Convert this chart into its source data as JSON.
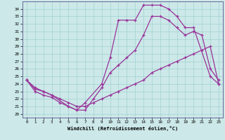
{
  "xlabel": "Windchill (Refroidissement éolien,°C)",
  "bg_color": "#cce8e8",
  "line_color": "#993399",
  "xlim": [
    -0.5,
    23.5
  ],
  "ylim": [
    19.5,
    35.0
  ],
  "xticks": [
    0,
    1,
    2,
    3,
    4,
    5,
    6,
    7,
    8,
    9,
    10,
    11,
    12,
    13,
    14,
    15,
    16,
    17,
    18,
    19,
    20,
    21,
    22,
    23
  ],
  "yticks": [
    20,
    21,
    22,
    23,
    24,
    25,
    26,
    27,
    28,
    29,
    30,
    31,
    32,
    33,
    34
  ],
  "line1_x": [
    0,
    1,
    2,
    3,
    5,
    6,
    7,
    9,
    10,
    11,
    12,
    13,
    14,
    15,
    16,
    17,
    18,
    19,
    20,
    22,
    23
  ],
  "line1_y": [
    24.5,
    23.3,
    23.0,
    22.5,
    21.0,
    20.5,
    21.5,
    24.0,
    27.5,
    32.5,
    32.5,
    32.5,
    34.5,
    34.5,
    34.5,
    34.0,
    33.0,
    31.5,
    31.5,
    25.0,
    24.0
  ],
  "line2_x": [
    0,
    1,
    2,
    3,
    4,
    5,
    6,
    7,
    8,
    9,
    10,
    11,
    12,
    13,
    14,
    15,
    16,
    17,
    18,
    19,
    20,
    21,
    22,
    23
  ],
  "line2_y": [
    24.5,
    23.0,
    22.5,
    22.2,
    21.5,
    21.0,
    20.5,
    20.5,
    22.0,
    23.5,
    25.5,
    26.5,
    27.5,
    28.5,
    30.5,
    33.0,
    33.0,
    32.5,
    31.5,
    30.5,
    31.0,
    30.5,
    26.0,
    24.5
  ],
  "line3_x": [
    0,
    1,
    2,
    3,
    4,
    5,
    6,
    7,
    8,
    9,
    10,
    11,
    12,
    13,
    14,
    15,
    16,
    17,
    18,
    19,
    20,
    21,
    22,
    23
  ],
  "line3_y": [
    24.5,
    23.5,
    23.0,
    22.5,
    22.0,
    21.5,
    21.0,
    21.0,
    21.5,
    22.0,
    22.5,
    23.0,
    23.5,
    24.0,
    24.5,
    25.5,
    26.0,
    26.5,
    27.0,
    27.5,
    28.0,
    28.5,
    29.0,
    24.0
  ]
}
